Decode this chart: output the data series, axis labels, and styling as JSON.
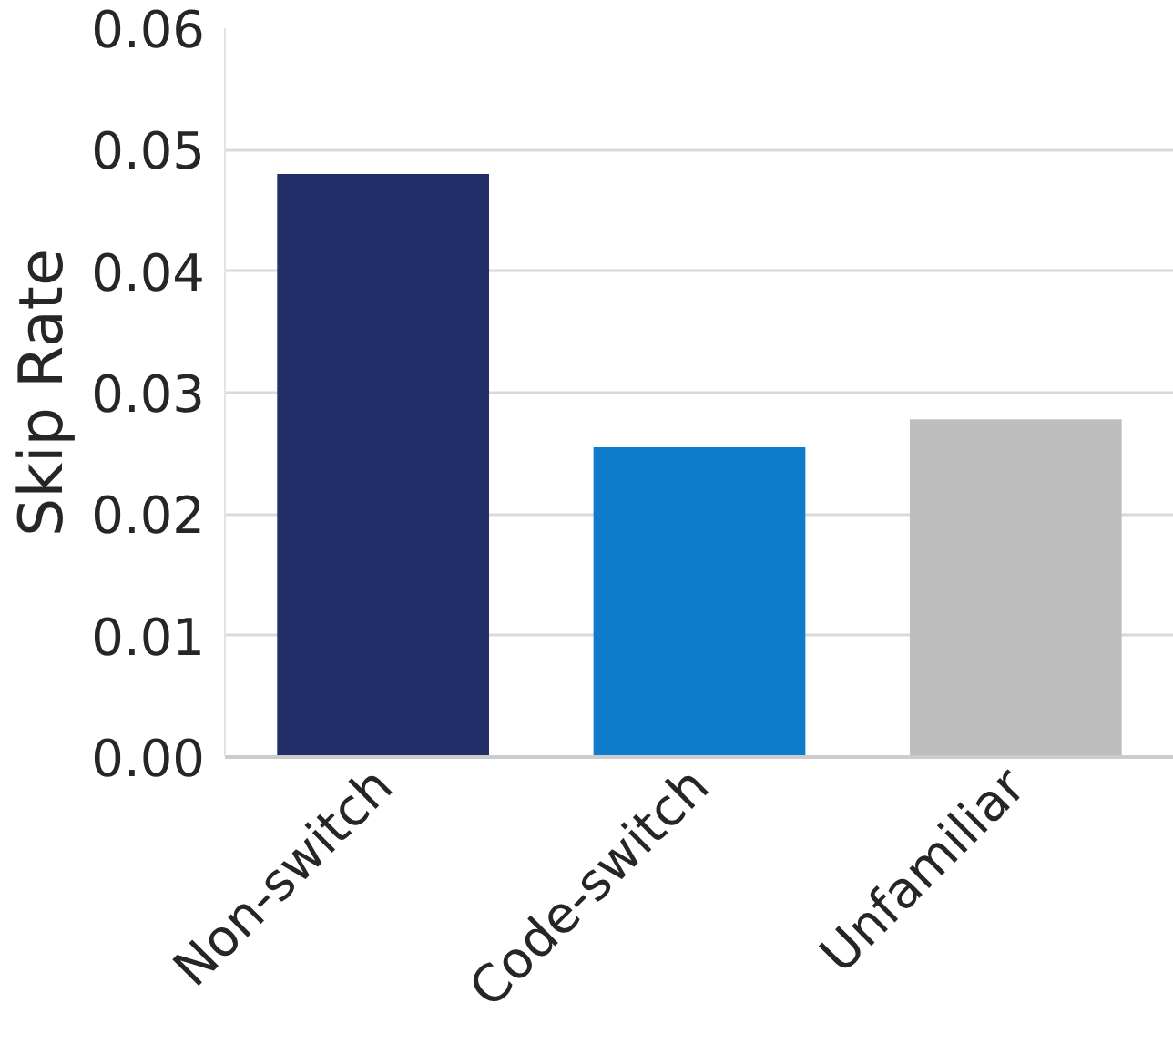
{
  "chart_data": {
    "type": "bar",
    "ylabel": "Skip Rate",
    "categories": [
      "Non-switch",
      "Code-switch",
      "Unfamiliar"
    ],
    "values": [
      0.048,
      0.0255,
      0.0278
    ],
    "colors": [
      "#222f68",
      "#0e7bcb",
      "#bebebe"
    ],
    "ylim": [
      0,
      0.06
    ],
    "yticks": [
      {
        "value": 0,
        "label": "0.00"
      },
      {
        "value": 0.01,
        "label": "0.01"
      },
      {
        "value": 0.02,
        "label": "0.02"
      },
      {
        "value": 0.03,
        "label": "0.03"
      },
      {
        "value": 0.04,
        "label": "0.04"
      },
      {
        "value": 0.05,
        "label": "0.05"
      },
      {
        "value": 0.06,
        "label": "0.06"
      }
    ],
    "grid": "y"
  }
}
